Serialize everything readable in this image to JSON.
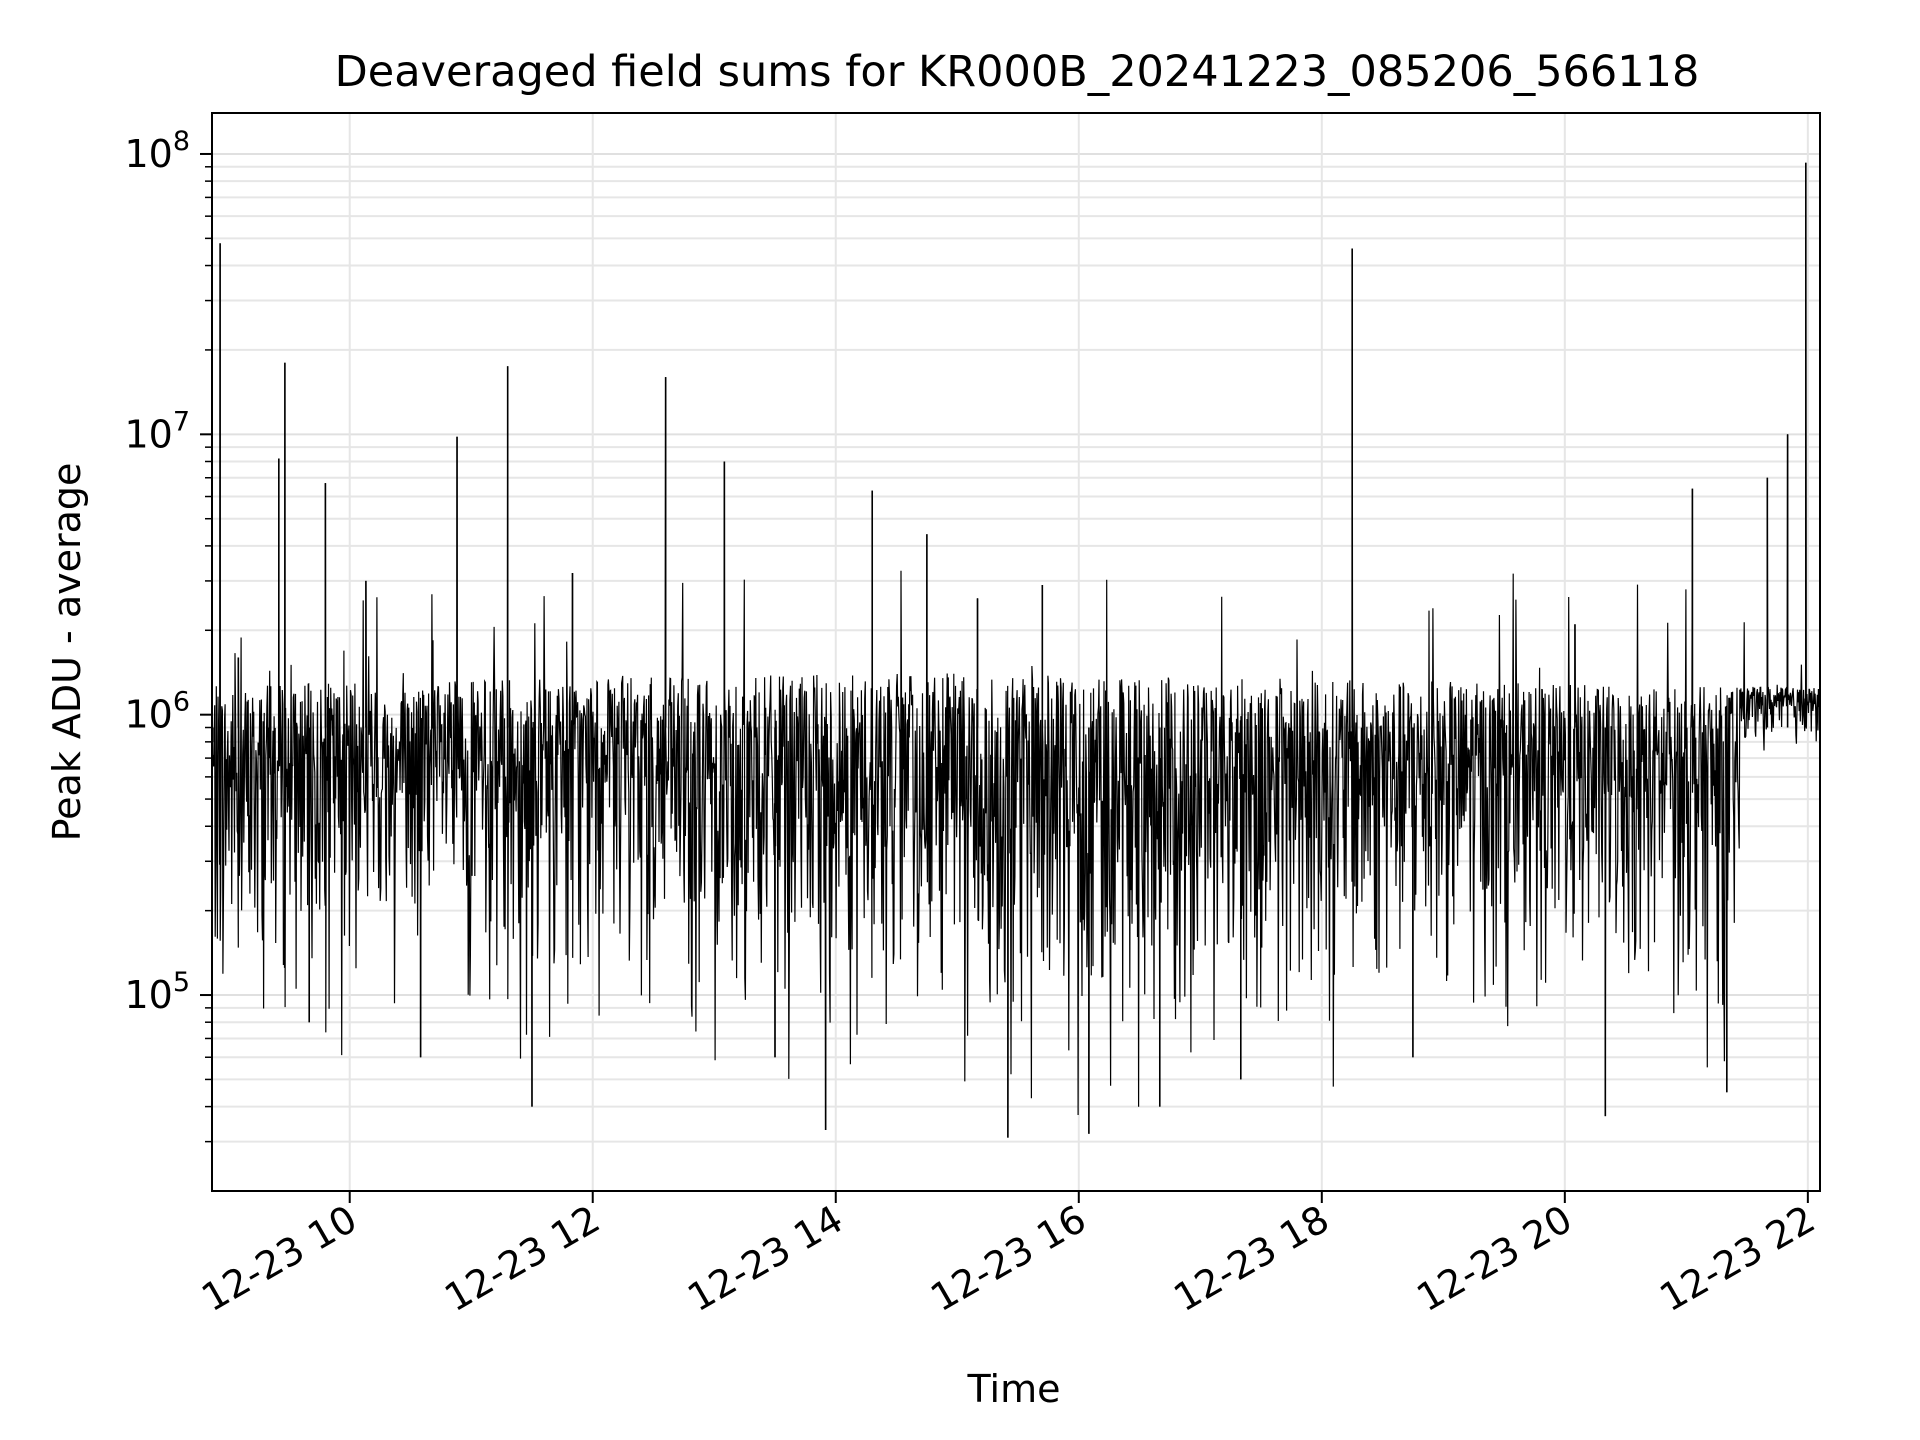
{
  "chart_data": {
    "type": "line",
    "title": "Deaveraged field sums for KR000B_20241223_085206_566118",
    "xlabel": "Time",
    "ylabel": "Peak ADU - average",
    "y_scale": "log",
    "grid": true,
    "line_color": "#000000",
    "xlim": [
      "2024-12-23 08:52",
      "2024-12-23 22:06"
    ],
    "ylim": [
      20000,
      140000000
    ],
    "x_ticks": [
      {
        "t": "2024-12-23 10:00",
        "label": "12-23 10"
      },
      {
        "t": "2024-12-23 12:00",
        "label": "12-23 12"
      },
      {
        "t": "2024-12-23 14:00",
        "label": "12-23 14"
      },
      {
        "t": "2024-12-23 16:00",
        "label": "12-23 16"
      },
      {
        "t": "2024-12-23 18:00",
        "label": "12-23 18"
      },
      {
        "t": "2024-12-23 20:00",
        "label": "12-23 20"
      },
      {
        "t": "2024-12-23 22:00",
        "label": "12-23 22"
      }
    ],
    "y_ticks": [
      {
        "v": 100000,
        "base": "10",
        "exp": "5"
      },
      {
        "v": 1000000,
        "base": "10",
        "exp": "6"
      },
      {
        "v": 10000000,
        "base": "10",
        "exp": "7"
      },
      {
        "v": 100000000,
        "base": "10",
        "exp": "8"
      }
    ],
    "series": [
      {
        "values": [
          {
            "x": "2024-12-23 08:53",
            "y": 800000
          },
          {
            "x": "2024-12-23 08:56",
            "y": 48000000
          },
          {
            "x": "2024-12-23 09:05",
            "y": 1600000
          },
          {
            "x": "2024-12-23 09:20",
            "y": 700000
          },
          {
            "x": "2024-12-23 09:25",
            "y": 8200000
          },
          {
            "x": "2024-12-23 09:28",
            "y": 18000000
          },
          {
            "x": "2024-12-23 09:40",
            "y": 80000
          },
          {
            "x": "2024-12-23 09:48",
            "y": 6700000
          },
          {
            "x": "2024-12-23 10:08",
            "y": 3000000
          },
          {
            "x": "2024-12-23 10:35",
            "y": 60000
          },
          {
            "x": "2024-12-23 10:53",
            "y": 9800000
          },
          {
            "x": "2024-12-23 11:18",
            "y": 17500000
          },
          {
            "x": "2024-12-23 11:30",
            "y": 40000
          },
          {
            "x": "2024-12-23 11:50",
            "y": 3200000
          },
          {
            "x": "2024-12-23 12:36",
            "y": 16000000
          },
          {
            "x": "2024-12-23 13:05",
            "y": 8000000
          },
          {
            "x": "2024-12-23 13:30",
            "y": 60000
          },
          {
            "x": "2024-12-23 13:55",
            "y": 33000
          },
          {
            "x": "2024-12-23 14:18",
            "y": 6300000
          },
          {
            "x": "2024-12-23 14:45",
            "y": 4400000
          },
          {
            "x": "2024-12-23 15:10",
            "y": 2600000
          },
          {
            "x": "2024-12-23 15:25",
            "y": 31000
          },
          {
            "x": "2024-12-23 15:42",
            "y": 2900000
          },
          {
            "x": "2024-12-23 16:05",
            "y": 32000
          },
          {
            "x": "2024-12-23 16:40",
            "y": 40000
          },
          {
            "x": "2024-12-23 17:20",
            "y": 50000
          },
          {
            "x": "2024-12-23 18:15",
            "y": 46000000
          },
          {
            "x": "2024-12-23 18:45",
            "y": 60000
          },
          {
            "x": "2024-12-23 19:30",
            "y": 800000
          },
          {
            "x": "2024-12-23 20:05",
            "y": 2100000
          },
          {
            "x": "2024-12-23 20:20",
            "y": 37000
          },
          {
            "x": "2024-12-23 21:03",
            "y": 6400000
          },
          {
            "x": "2024-12-23 21:20",
            "y": 45000
          },
          {
            "x": "2024-12-23 21:40",
            "y": 7000000
          },
          {
            "x": "2024-12-23 21:50",
            "y": 10000000
          },
          {
            "x": "2024-12-23 21:59",
            "y": 93000000
          },
          {
            "x": "2024-12-23 22:05",
            "y": 900000
          }
        ]
      }
    ]
  }
}
